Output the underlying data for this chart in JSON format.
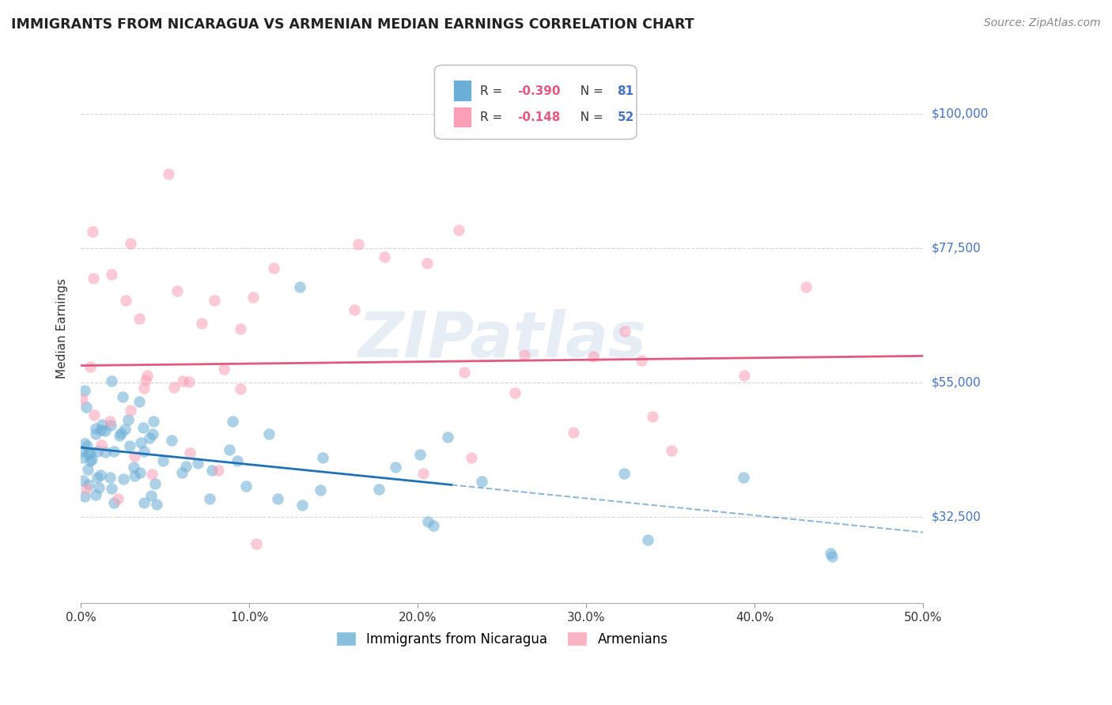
{
  "title": "IMMIGRANTS FROM NICARAGUA VS ARMENIAN MEDIAN EARNINGS CORRELATION CHART",
  "source": "Source: ZipAtlas.com",
  "ylabel": "Median Earnings",
  "ytick_labels": [
    "$32,500",
    "$55,000",
    "$77,500",
    "$100,000"
  ],
  "ytick_values": [
    32500,
    55000,
    77500,
    100000
  ],
  "xlim": [
    0.0,
    0.5
  ],
  "ylim": [
    18000,
    110000
  ],
  "nicaragua_R": -0.39,
  "nicaragua_N": 81,
  "armenian_R": -0.148,
  "armenian_N": 52,
  "nicaragua_color": "#6baed6",
  "armenian_color": "#fa9fb5",
  "nicaragua_line_color": "#2171b5",
  "armenian_line_color": "#e05a80",
  "watermark": "ZIPatlas",
  "background_color": "#ffffff",
  "grid_color": "#cccccc",
  "label_color_blue": "#4472c4",
  "label_color_pink": "#e05a80",
  "legend1_label": "R =",
  "legend1_R": "-0.390",
  "legend1_N_label": "N =",
  "legend1_N": "81",
  "legend2_label": "R =",
  "legend2_R": "-0.148",
  "legend2_N_label": "N =",
  "legend2_N": "52",
  "bottom_legend1": "Immigrants from Nicaragua",
  "bottom_legend2": "Armenians"
}
